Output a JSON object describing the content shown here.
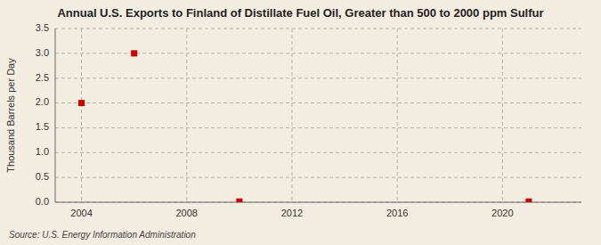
{
  "chart_data": {
    "type": "scatter",
    "title": "Annual U.S. Exports to Finland of Distillate Fuel Oil, Greater than 500 to 2000 ppm Sulfur",
    "ylabel": "Thousand Barrels per Day",
    "annotations": [
      "Source: U.S. Energy Information Administration"
    ],
    "x": [
      2004,
      2006,
      2010,
      2021
    ],
    "values": [
      2.0,
      3.0,
      0.014,
      0.014
    ],
    "xlim": [
      2003.0,
      2023.0
    ],
    "ylim": [
      0.0,
      3.5
    ],
    "xticks": [
      2004,
      2008,
      2012,
      2016,
      2020
    ],
    "yticks": [
      {
        "value": 0.0,
        "label": "0.0"
      },
      0.5,
      {
        "value": 1.0,
        "label": "1.0"
      },
      1.5,
      {
        "value": 2.0,
        "label": "2.0"
      },
      2.5,
      {
        "value": 3.0,
        "label": "3.0"
      },
      3.5
    ],
    "color": "#cc0000",
    "marker": "square",
    "grid": true
  }
}
